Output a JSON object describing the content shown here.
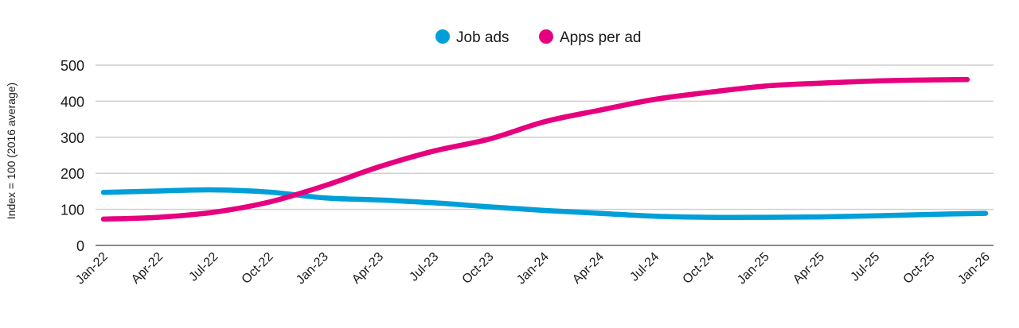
{
  "chart_data": {
    "type": "line",
    "title": "",
    "xlabel": "",
    "ylabel": "Index = 100 (2016 average)",
    "ylim": [
      0,
      500
    ],
    "yticks": [
      0,
      100,
      200,
      300,
      400,
      500
    ],
    "grid": true,
    "legend_position": "top-center",
    "x_tick_labels": [
      "Jan-22",
      "Apr-22",
      "Jul-22",
      "Oct-22",
      "Jan-23",
      "Apr-23",
      "Jul-23",
      "Oct-23",
      "Jan-24",
      "Apr-24",
      "Jul-24",
      "Oct-24",
      "Jan-25",
      "Apr-25",
      "Jul-25",
      "Oct-25",
      "Jan-26"
    ],
    "x_unit": "months since Jan-22",
    "series": [
      {
        "name": "Job ads",
        "color": "#009fd8",
        "x": [
          0,
          3,
          6,
          9,
          12,
          15,
          18,
          21,
          24,
          27,
          30,
          33,
          36,
          39,
          42,
          45,
          48
        ],
        "values": [
          147,
          151,
          154,
          148,
          132,
          126,
          118,
          107,
          97,
          89,
          81,
          78,
          78,
          79,
          82,
          86,
          89
        ]
      },
      {
        "name": "Apps per ad",
        "color": "#e6007e",
        "x": [
          0,
          3,
          6,
          9,
          12,
          15,
          18,
          21,
          24,
          27,
          30,
          33,
          36,
          39,
          42,
          45,
          47
        ],
        "values": [
          73,
          78,
          92,
          120,
          165,
          218,
          262,
          295,
          343,
          375,
          405,
          425,
          442,
          450,
          456,
          459,
          460
        ]
      }
    ]
  }
}
